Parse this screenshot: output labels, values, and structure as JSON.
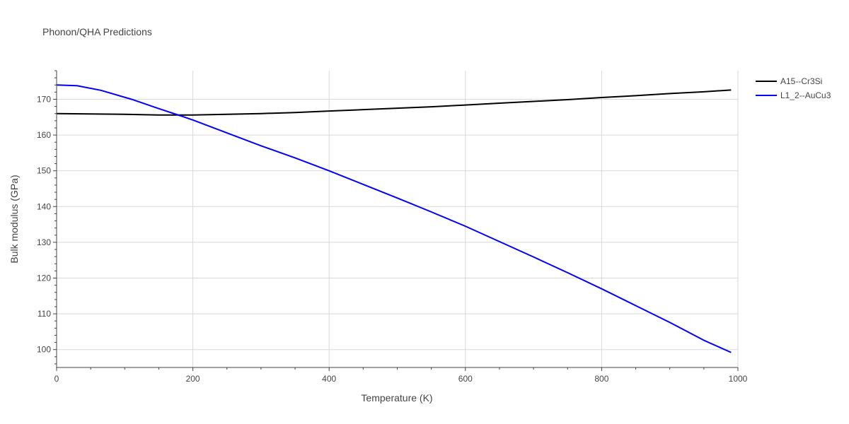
{
  "chart_data": {
    "type": "line",
    "title": "Phonon/QHA Predictions",
    "xlabel": "Temperature (K)",
    "ylabel": "Bulk modulus (GPa)",
    "xlim": [
      0,
      1000
    ],
    "ylim": [
      95,
      178
    ],
    "x_ticks": [
      "0",
      "200",
      "400",
      "600",
      "800",
      "1000"
    ],
    "y_ticks": [
      "100",
      "110",
      "120",
      "130",
      "140",
      "150",
      "160",
      "170"
    ],
    "grid": true,
    "legend_position": "top-right",
    "series": [
      {
        "name": "A15--Cr3Si",
        "color": "#000000",
        "x": [
          0,
          50,
          100,
          150,
          200,
          250,
          300,
          350,
          400,
          450,
          500,
          550,
          600,
          650,
          700,
          750,
          800,
          850,
          900,
          950,
          990
        ],
        "y": [
          166.0,
          165.9,
          165.8,
          165.6,
          165.6,
          165.8,
          166.0,
          166.3,
          166.7,
          167.1,
          167.5,
          167.9,
          168.4,
          168.9,
          169.4,
          169.9,
          170.5,
          171.0,
          171.6,
          172.1,
          172.6
        ]
      },
      {
        "name": "L1_2--AuCu3",
        "color": "#0000ff",
        "x": [
          0,
          30,
          65,
          110,
          150,
          180,
          200,
          250,
          300,
          350,
          400,
          450,
          500,
          550,
          600,
          650,
          700,
          750,
          800,
          850,
          900,
          950,
          990
        ],
        "y": [
          174.0,
          173.8,
          172.5,
          170.0,
          167.4,
          165.5,
          164.2,
          160.6,
          157.0,
          153.6,
          150.0,
          146.2,
          142.4,
          138.5,
          134.5,
          130.2,
          125.9,
          121.5,
          117.0,
          112.3,
          107.6,
          102.6,
          99.2
        ]
      }
    ]
  }
}
